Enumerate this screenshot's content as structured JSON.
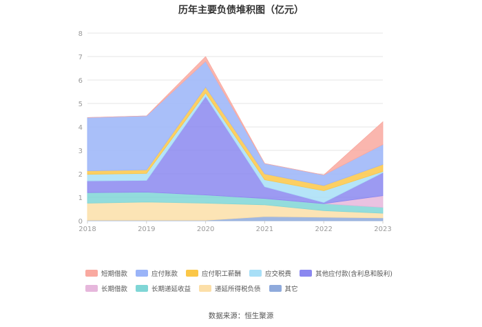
{
  "chart_data": {
    "type": "area",
    "title": "历年主要负债堆积图（亿元）",
    "source": "数据来源：恒生聚源",
    "x": [
      "2018",
      "2019",
      "2020",
      "2021",
      "2022",
      "2023"
    ],
    "ylim": [
      0,
      8
    ],
    "yticks": [
      "0",
      "1",
      "2",
      "3",
      "4",
      "5",
      "6",
      "7",
      "8"
    ],
    "grid": true,
    "legend_position": "bottom",
    "stacked": true,
    "series": [
      {
        "name": "其它",
        "color": "#8FAADC",
        "values": [
          0.02,
          0.02,
          0.02,
          0.18,
          0.15,
          0.12
        ]
      },
      {
        "name": "递延所得税负债",
        "color": "#FCDFA8",
        "values": [
          0.73,
          0.78,
          0.73,
          0.5,
          0.28,
          0.2
        ]
      },
      {
        "name": "长期递延收益",
        "color": "#7FD6D6",
        "values": [
          0.45,
          0.42,
          0.35,
          0.27,
          0.3,
          0.25
        ]
      },
      {
        "name": "长期借款",
        "color": "#E6B7DC",
        "values": [
          0,
          0,
          0,
          0,
          0,
          0.5
        ]
      },
      {
        "name": "其他应付款(含利息和股利)",
        "color": "#8B88F0",
        "values": [
          0.5,
          0.5,
          4.2,
          0.5,
          0.05,
          0.98
        ]
      },
      {
        "name": "应交税费",
        "color": "#A8DFF7",
        "values": [
          0.28,
          0.3,
          0.15,
          0.3,
          0.5,
          0.05
        ]
      },
      {
        "name": "应付职工薪酬",
        "color": "#FBC748",
        "values": [
          0.15,
          0.15,
          0.25,
          0.25,
          0.22,
          0.3
        ]
      },
      {
        "name": "应付账款",
        "color": "#9AB4F8",
        "values": [
          2.27,
          2.3,
          1.1,
          0.44,
          0.45,
          0.85
        ]
      },
      {
        "name": "短期借款",
        "color": "#F9A9A0",
        "values": [
          0,
          0,
          0.2,
          0,
          0,
          0.97
        ]
      }
    ]
  },
  "legend_rows": [
    [
      "短期借款",
      "应付账款",
      "应付职工薪酬",
      "应交税费",
      "其他应付款(含利息和股利)"
    ],
    [
      "长期借款",
      "长期递延收益",
      "递延所得税负债",
      "其它"
    ]
  ]
}
